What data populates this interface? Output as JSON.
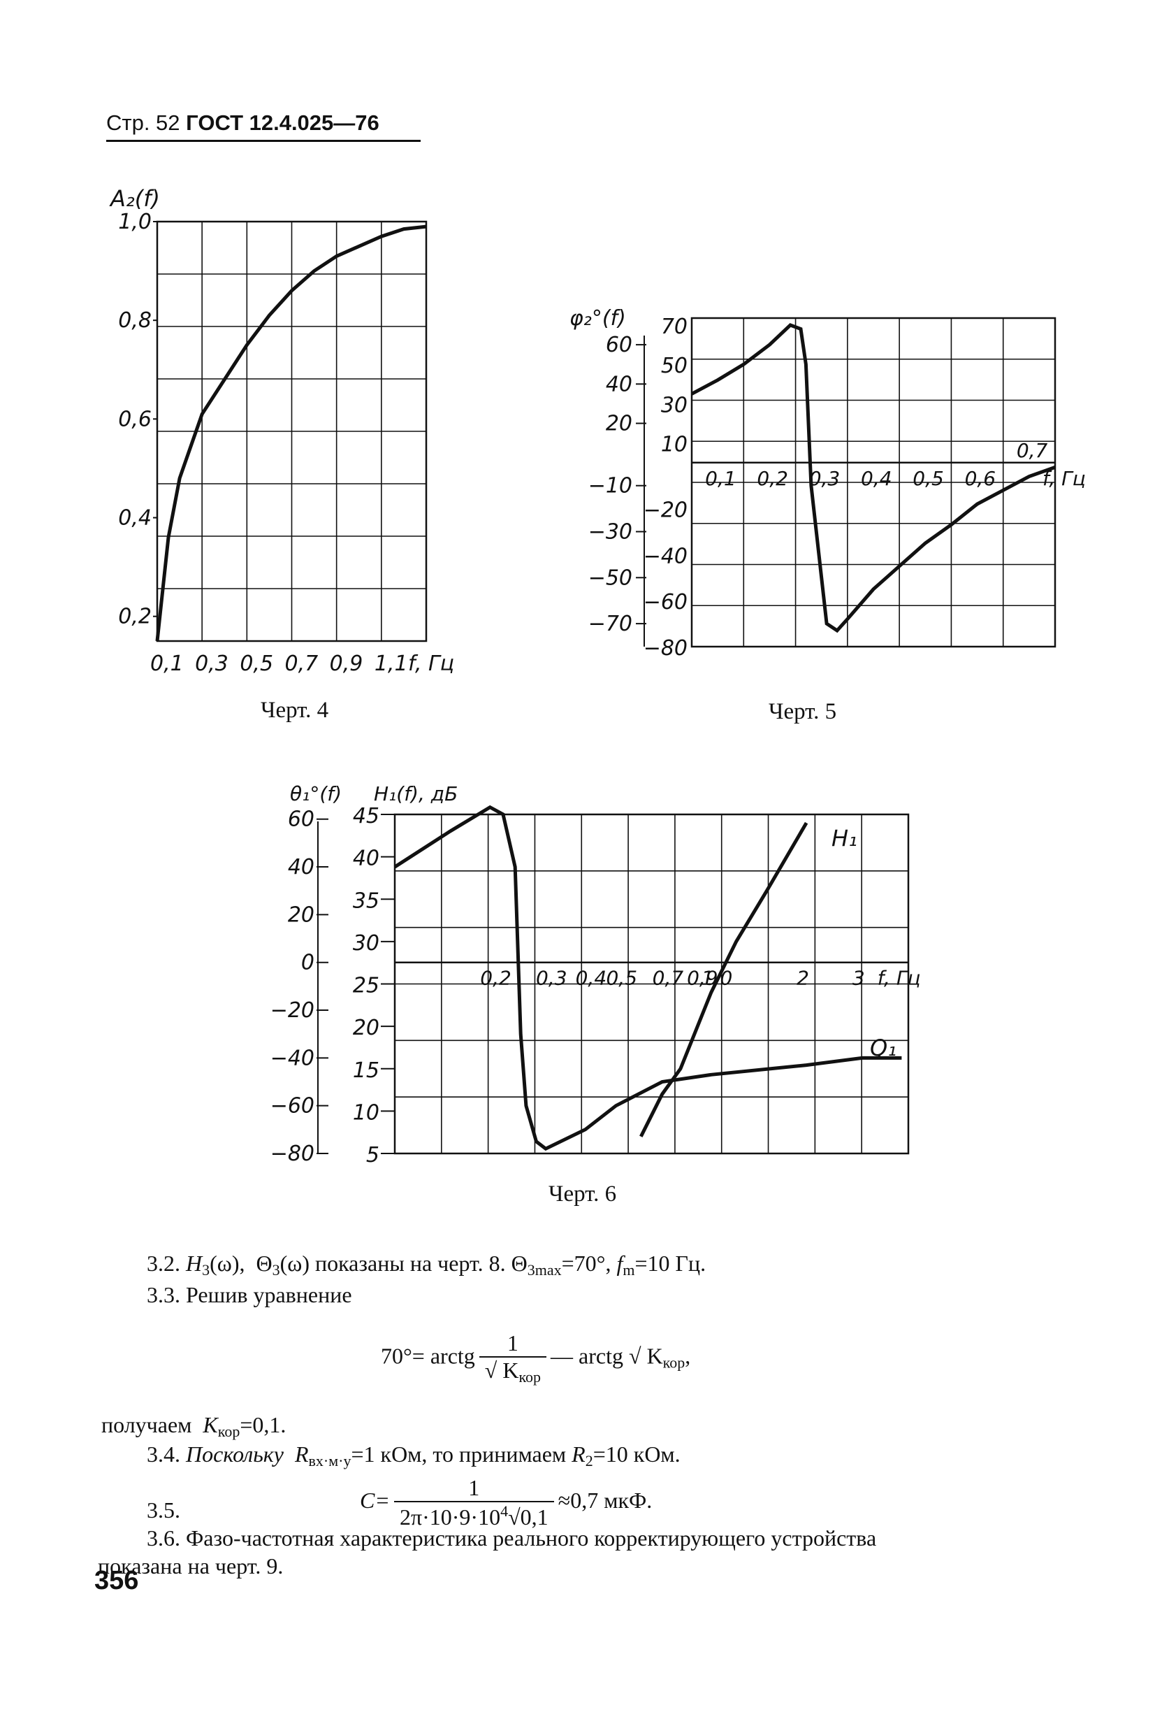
{
  "header": {
    "prefix": "Стр. 52",
    "code": "ГОСТ 12.4.025—76"
  },
  "charts": [
    {
      "id": "fig4",
      "caption": "Черт. 4",
      "ylabel": "A₂(f)",
      "y_ticks": [
        "0,2",
        "0,4",
        "0,6",
        "0,8",
        "1,0"
      ],
      "x_ticks": [
        "0,1",
        "0,3",
        "0,5",
        "0,7",
        "0,9",
        "1,1",
        "f, Гц"
      ]
    },
    {
      "id": "fig5",
      "caption": "Черт. 5",
      "ylabel": "φ₂°(f)",
      "y_ticks_outer": [
        "60",
        "40",
        "20",
        "−10",
        "−30",
        "−50",
        "−70"
      ],
      "y_ticks_inner": [
        "70",
        "50",
        "30",
        "10",
        "−20",
        "−40",
        "−60",
        "−80"
      ],
      "x_ticks": [
        "0,1",
        "0,2",
        "0,3",
        "0,4",
        "0,5",
        "0,6",
        "0,7",
        "f, Гц"
      ]
    },
    {
      "id": "fig6",
      "caption": "Черт. 6",
      "ylabel_theta": "θ₁°(f)",
      "ylabel_h": "H₁(f), дБ",
      "y_ticks_theta": [
        "60",
        "40",
        "20",
        "0",
        "−20",
        "−40",
        "−60",
        "−80"
      ],
      "y_ticks_h": [
        "45",
        "40",
        "35",
        "30",
        "25",
        "20",
        "15",
        "10",
        "5"
      ],
      "x_ticks": [
        "0,2",
        "0,3",
        "0,4",
        "0,5",
        "0,7",
        "0,9",
        "1,0",
        "2",
        "3",
        "f, Гц"
      ],
      "curve_labels": [
        "H₁",
        "Q₁"
      ]
    }
  ],
  "chart_data": [
    {
      "type": "line",
      "xlabel": "f, Гц",
      "ylabel": "A₂(f)",
      "xlim": [
        0.1,
        1.3
      ],
      "ylim": [
        0.15,
        1.0
      ],
      "series": [
        {
          "x": [
            0.1,
            0.15,
            0.2,
            0.3,
            0.4,
            0.5,
            0.6,
            0.7,
            0.8,
            0.9,
            1.0,
            1.1,
            1.2,
            1.3
          ],
          "y": [
            0.15,
            0.36,
            0.48,
            0.61,
            0.68,
            0.75,
            0.81,
            0.86,
            0.9,
            0.93,
            0.95,
            0.97,
            0.985,
            0.99
          ]
        }
      ]
    },
    {
      "type": "line",
      "xlabel": "f, Гц",
      "ylabel": "φ₂°(f)",
      "xlim": [
        0.05,
        0.75
      ],
      "ylim": [
        -80,
        80
      ],
      "series": [
        {
          "x": [
            0.05,
            0.1,
            0.15,
            0.2,
            0.24,
            0.26,
            0.27,
            0.28,
            0.3,
            0.31,
            0.33,
            0.35,
            0.4,
            0.45,
            0.5,
            0.55,
            0.6,
            0.65,
            0.7,
            0.75
          ],
          "y": [
            35,
            42,
            50,
            60,
            70,
            68,
            50,
            -10,
            -50,
            -70,
            -73,
            -68,
            -55,
            -45,
            -35,
            -27,
            -18,
            -12,
            -6,
            -2
          ]
        }
      ]
    },
    {
      "type": "line",
      "xlabel": "f, Гц",
      "series": [
        {
          "name": "H₁",
          "x": [
            0.6,
            0.7,
            0.8,
            1.0,
            1.2,
            1.5,
            2.0
          ],
          "y": [
            7,
            12,
            15,
            24,
            30,
            36,
            44
          ]
        },
        {
          "name": "Q₁",
          "x": [
            0.1,
            0.15,
            0.2,
            0.22,
            0.24,
            0.25,
            0.26,
            0.28,
            0.3,
            0.4,
            0.5,
            0.7,
            1.0,
            2.0,
            3.0,
            4.0
          ],
          "y": [
            40,
            55,
            65,
            62,
            40,
            -30,
            -60,
            -75,
            -78,
            -70,
            -60,
            -50,
            -47,
            -43,
            -40,
            -40
          ]
        }
      ]
    }
  ],
  "text": {
    "p32_prefix": "3.2.",
    "p32_h": "H",
    "p32_h_sub": "3",
    "p32_arg": "(ω),",
    "p32_theta": "Θ",
    "p32_theta_sub": "3",
    "p32_mid": "(ω) показаны на черт. 8.",
    "p32_theta2_sub": "3max",
    "p32_val": "=70°,",
    "p32_f": "f",
    "p32_f_sub": "m",
    "p32_end": "=10 Гц.",
    "p33": "3.3. Решив уравнение",
    "eq_left": "70°= arctg",
    "eq_num": "1",
    "eq_den": "√ K",
    "eq_den_sub": "кор",
    "eq_mid": "— arctg √ K",
    "eq_mid_sub": "кор",
    "eq_end": ",",
    "result_prefix": "получаем",
    "result_k": "K",
    "result_k_sub": "кор",
    "result_val": "=0,1.",
    "p34_prefix": "3.4.",
    "p34_text1": "Поскольку",
    "p34_r": "R",
    "p34_r_sub": "вх·м·у",
    "p34_val": "=1 кОм, то принимаем",
    "p34_r2": "R",
    "p34_r2_sub": "2",
    "p34_end": "=10 кОм.",
    "p35_label": "3.5.",
    "p35_c": "C=",
    "p35_num": "1",
    "p35_den": "2π·10·9·10",
    "p35_den_sup": "4",
    "p35_den_tail": "√0,1",
    "p35_result": "≈0,7 мкФ.",
    "p36_line1": "3.6. Фазо-частотная характеристика реального корректирующего устройства",
    "p36_line2": "показана на черт. 9."
  },
  "page_number": "356"
}
